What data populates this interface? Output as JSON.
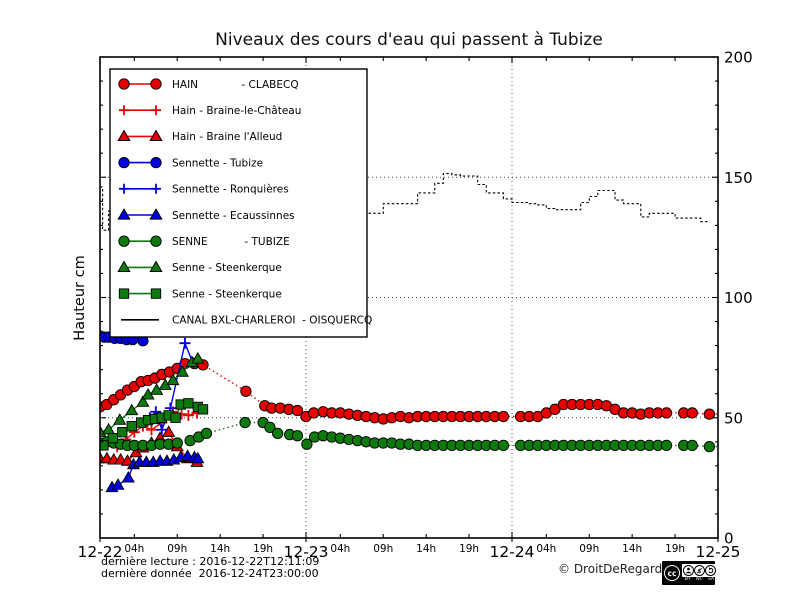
{
  "footer": {
    "line1": "dernière lecture : 2016-12-22T12:11:09",
    "line2": "dernière donnée  2016-12-24T23:00:00"
  },
  "copyright": "© DroitDeRegard.be",
  "cc_badge": {
    "cc": "cc",
    "labels": [
      "BY",
      "NC",
      "SA"
    ]
  },
  "chart_data": {
    "type": "line",
    "title": "Niveaux des cours d'eau qui passent à Tubize",
    "ylabel": "Hauteur cm",
    "ylim": [
      0,
      200
    ],
    "yticks": [
      0,
      50,
      100,
      150,
      200
    ],
    "y_minor_step": 10,
    "grid_y": [
      50,
      100,
      150
    ],
    "grid_x_hours": [
      24,
      48
    ],
    "x_range_hours": [
      0,
      72
    ],
    "grid": "dotted",
    "legend_position": "upper left",
    "day_ticks": [
      {
        "h": 0,
        "label": "12-22"
      },
      {
        "h": 24,
        "label": "12-23"
      },
      {
        "h": 48,
        "label": "12-24"
      },
      {
        "h": 72,
        "label": "12-25"
      }
    ],
    "hour_ticks": [
      {
        "h": 4,
        "label": "04h"
      },
      {
        "h": 9,
        "label": "09h"
      },
      {
        "h": 14,
        "label": "14h"
      },
      {
        "h": 19,
        "label": "19h"
      },
      {
        "h": 28,
        "label": "04h"
      },
      {
        "h": 33,
        "label": "09h"
      },
      {
        "h": 38,
        "label": "14h"
      },
      {
        "h": 43,
        "label": "19h"
      },
      {
        "h": 52,
        "label": "04h"
      },
      {
        "h": 57,
        "label": "09h"
      },
      {
        "h": 62,
        "label": "14h"
      },
      {
        "h": 67,
        "label": "19h"
      }
    ],
    "series": [
      {
        "id": "hain-clabecq",
        "legend_label": "HAIN             - CLABECQ",
        "color": "#e60000",
        "marker": "circle",
        "line": "dotted",
        "points": [
          [
            0,
            54.5
          ],
          [
            0.8,
            55.5
          ],
          [
            1.6,
            57.5
          ],
          [
            2.4,
            59.5
          ],
          [
            3.2,
            61.5
          ],
          [
            4,
            63
          ],
          [
            4.8,
            65
          ],
          [
            5.6,
            65.5
          ],
          [
            6.4,
            66.5
          ],
          [
            7.2,
            68
          ],
          [
            8.1,
            69
          ],
          [
            9,
            70.5
          ],
          [
            9.9,
            72.5
          ],
          [
            11,
            72.5
          ],
          [
            12,
            72
          ],
          [
            17,
            61
          ],
          [
            19.2,
            55
          ],
          [
            20,
            54
          ],
          [
            21,
            54
          ],
          [
            22,
            53.5
          ],
          [
            23,
            53
          ],
          [
            24,
            50.5
          ],
          [
            24.9,
            52
          ],
          [
            26,
            52.5
          ],
          [
            27,
            52
          ],
          [
            28,
            52
          ],
          [
            29,
            51.5
          ],
          [
            30,
            51
          ],
          [
            31,
            50.5
          ],
          [
            32,
            50
          ],
          [
            33,
            49.5
          ],
          [
            34,
            50
          ],
          [
            35,
            50.5
          ],
          [
            36,
            50
          ],
          [
            37,
            50.5
          ],
          [
            38,
            50.5
          ],
          [
            39,
            50.5
          ],
          [
            40,
            50.5
          ],
          [
            41,
            50.5
          ],
          [
            42,
            50.5
          ],
          [
            43,
            50.5
          ],
          [
            44,
            50.5
          ],
          [
            45,
            50.5
          ],
          [
            46,
            50.5
          ],
          [
            47,
            50.5
          ],
          [
            49,
            50.5
          ],
          [
            50,
            50.5
          ],
          [
            51,
            50.5
          ],
          [
            52,
            52
          ],
          [
            53,
            53.5
          ],
          [
            54,
            55.5
          ],
          [
            55,
            55.5
          ],
          [
            56,
            55.5
          ],
          [
            57,
            55.5
          ],
          [
            58,
            55.5
          ],
          [
            59,
            55
          ],
          [
            60,
            53.5
          ],
          [
            61,
            52
          ],
          [
            62,
            52
          ],
          [
            63,
            51.5
          ],
          [
            64,
            52
          ],
          [
            65,
            52
          ],
          [
            66,
            52
          ],
          [
            68,
            52
          ],
          [
            69,
            52
          ],
          [
            71,
            51.5
          ]
        ],
        "extend": [
          [
            72,
            51.5
          ]
        ]
      },
      {
        "id": "hain-braine-le-chateau",
        "legend_label": "Hain - Braine-le-Château",
        "color": "#e60000",
        "marker": "plus",
        "line": "solid",
        "points": [
          [
            2,
            38
          ],
          [
            3,
            41
          ],
          [
            4,
            44
          ],
          [
            5,
            46.5
          ],
          [
            6,
            45
          ],
          [
            7.2,
            48
          ],
          [
            8.5,
            52.5
          ],
          [
            9.5,
            51.5
          ],
          [
            10.3,
            51
          ],
          [
            11.3,
            52
          ]
        ]
      },
      {
        "id": "hain-braine-l-alleud",
        "legend_label": "Hain - Braine l'Alleud",
        "color": "#e60000",
        "marker": "triangle",
        "line": "solid",
        "points": [
          [
            0,
            33
          ],
          [
            0.8,
            33
          ],
          [
            1.6,
            32.5
          ],
          [
            2.4,
            32.5
          ],
          [
            3.2,
            32
          ],
          [
            4.2,
            35.5
          ],
          [
            5,
            37.5
          ],
          [
            6,
            39.5
          ],
          [
            7,
            41.5
          ],
          [
            8,
            44
          ],
          [
            9,
            38
          ],
          [
            10.2,
            33
          ],
          [
            11.3,
            31.5
          ]
        ]
      },
      {
        "id": "sennette-tubize",
        "legend_label": "Sennette - Tubize",
        "color": "#0000dd",
        "marker": "circle",
        "line": "dotted",
        "points": [
          [
            0,
            84
          ],
          [
            0.5,
            83.5
          ],
          [
            1,
            83.5
          ],
          [
            1.7,
            83
          ],
          [
            2.4,
            83
          ],
          [
            3.1,
            82.5
          ],
          [
            3.8,
            82.5
          ],
          [
            5,
            82
          ]
        ]
      },
      {
        "id": "sennette-ronquieres",
        "legend_label": "Sennette - Ronquières",
        "color": "#0000dd",
        "marker": "plus",
        "line": "solid",
        "points": [
          [
            5.8,
            50
          ],
          [
            6.5,
            52.5
          ],
          [
            7.2,
            45
          ],
          [
            8.2,
            54
          ],
          [
            9.9,
            81
          ],
          [
            10.8,
            73
          ]
        ]
      },
      {
        "id": "sennette-ecaussinnes",
        "legend_label": "Sennette - Ecaussinnes",
        "color": "#0000dd",
        "marker": "triangle",
        "line": "solid",
        "points": [
          [
            1.4,
            21
          ],
          [
            2.1,
            22
          ],
          [
            3.3,
            25
          ],
          [
            3.9,
            30.5
          ],
          [
            4.6,
            31.5
          ],
          [
            5.4,
            31.5
          ],
          [
            6.2,
            31.5
          ],
          [
            7,
            32
          ],
          [
            7.8,
            32
          ],
          [
            8.6,
            32.5
          ],
          [
            9.4,
            33.5
          ],
          [
            10.2,
            34
          ],
          [
            11,
            33.5
          ],
          [
            11.4,
            33
          ]
        ]
      },
      {
        "id": "senne-tubize",
        "legend_label": "SENNE           - TUBIZE",
        "color": "#0e7a0e",
        "marker": "circle",
        "line": "dotted",
        "points": [
          [
            0,
            39.5
          ],
          [
            0.8,
            40
          ],
          [
            1.6,
            39.5
          ],
          [
            2.4,
            39
          ],
          [
            3.2,
            38.5
          ],
          [
            4,
            38.5
          ],
          [
            5,
            38.5
          ],
          [
            6,
            38.5
          ],
          [
            7,
            39
          ],
          [
            8,
            39
          ],
          [
            9,
            39.5
          ],
          [
            10.5,
            40.5
          ],
          [
            11.5,
            42
          ],
          [
            12.4,
            43.5
          ],
          [
            16.9,
            48
          ],
          [
            19,
            48
          ],
          [
            19.8,
            46
          ],
          [
            20.7,
            43.5
          ],
          [
            22.1,
            43
          ],
          [
            23,
            42.5
          ],
          [
            24.1,
            39
          ],
          [
            25,
            42
          ],
          [
            26,
            42.5
          ],
          [
            27,
            42
          ],
          [
            28,
            41.5
          ],
          [
            29,
            41
          ],
          [
            30,
            40.5
          ],
          [
            31,
            40
          ],
          [
            32,
            39.5
          ],
          [
            33,
            39.5
          ],
          [
            34,
            39.5
          ],
          [
            35,
            39
          ],
          [
            36,
            39
          ],
          [
            37,
            38.5
          ],
          [
            38,
            38.5
          ],
          [
            39,
            38.5
          ],
          [
            40,
            38.5
          ],
          [
            41,
            38.5
          ],
          [
            42,
            38.5
          ],
          [
            43,
            38.5
          ],
          [
            44,
            38.5
          ],
          [
            45,
            38.5
          ],
          [
            46,
            38.5
          ],
          [
            47,
            38.5
          ],
          [
            49,
            38.5
          ],
          [
            50,
            38.5
          ],
          [
            51,
            38.5
          ],
          [
            52,
            38.5
          ],
          [
            53,
            38.5
          ],
          [
            54,
            38.5
          ],
          [
            55,
            38.5
          ],
          [
            56,
            38.5
          ],
          [
            57,
            38.5
          ],
          [
            58,
            38.5
          ],
          [
            59,
            38.5
          ],
          [
            60,
            38.5
          ],
          [
            61,
            38.5
          ],
          [
            62,
            38.5
          ],
          [
            63,
            38.5
          ],
          [
            64,
            38.5
          ],
          [
            65,
            38.5
          ],
          [
            66,
            38.5
          ],
          [
            68,
            38.5
          ],
          [
            69,
            38.5
          ],
          [
            71,
            38
          ]
        ],
        "extend": [
          [
            72,
            38
          ]
        ]
      },
      {
        "id": "senne-steenkerque-1",
        "legend_label": "Senne - Steenkerque",
        "color": "#0e7a0e",
        "marker": "triangle",
        "line": "solid",
        "points": [
          [
            0,
            44
          ],
          [
            1,
            45
          ],
          [
            2.3,
            49
          ],
          [
            3.7,
            53
          ],
          [
            5,
            56.5
          ],
          [
            5.6,
            59.5
          ],
          [
            6.6,
            61.5
          ],
          [
            7.6,
            63.5
          ],
          [
            8.5,
            65.5
          ],
          [
            9.6,
            69
          ],
          [
            10.7,
            73
          ],
          [
            11.4,
            74.5
          ]
        ]
      },
      {
        "id": "senne-steenkerque-2",
        "legend_label": "Senne - Steenkerque",
        "color": "#0e7a0e",
        "marker": "square",
        "line": "solid",
        "points": [
          [
            0.4,
            38.5
          ],
          [
            1.5,
            41.5
          ],
          [
            2.6,
            44
          ],
          [
            3.7,
            46.5
          ],
          [
            4.8,
            48
          ],
          [
            5.6,
            49
          ],
          [
            6.4,
            49.5
          ],
          [
            7.2,
            50
          ],
          [
            8,
            51
          ],
          [
            8.8,
            50
          ],
          [
            9.4,
            55.5
          ],
          [
            10.3,
            56
          ],
          [
            11.4,
            54.5
          ],
          [
            12,
            53.5
          ]
        ]
      },
      {
        "id": "canal-bxl-charleroi-oisquercq",
        "legend_label": "CANAL BXL-CHARLEROI  - OISQUERCQ",
        "color": "#000000",
        "marker": "none",
        "line": "step-dash",
        "points": [
          [
            0,
            146
          ],
          [
            0.3,
            128
          ],
          [
            1,
            136
          ],
          [
            2,
            137
          ],
          [
            4,
            138
          ],
          [
            6,
            138
          ],
          [
            8,
            137
          ],
          [
            10,
            137
          ],
          [
            12,
            136
          ],
          [
            14,
            136
          ],
          [
            16,
            135
          ],
          [
            18,
            135
          ],
          [
            20,
            135
          ],
          [
            22,
            135
          ],
          [
            24,
            135
          ],
          [
            26,
            135
          ],
          [
            28,
            135
          ],
          [
            30,
            135
          ],
          [
            32,
            135
          ],
          [
            33,
            139
          ],
          [
            34,
            139
          ],
          [
            35,
            139
          ],
          [
            36,
            139
          ],
          [
            37,
            143.5
          ],
          [
            38,
            143.5
          ],
          [
            39,
            147.5
          ],
          [
            40,
            151.5
          ],
          [
            41,
            151
          ],
          [
            42,
            150.5
          ],
          [
            43,
            150.5
          ],
          [
            44,
            147
          ],
          [
            45,
            143.5
          ],
          [
            46,
            143.5
          ],
          [
            47,
            141
          ],
          [
            48,
            139.5
          ],
          [
            49,
            139.5
          ],
          [
            50,
            139
          ],
          [
            51,
            138.5
          ],
          [
            52,
            137
          ],
          [
            53,
            136.5
          ],
          [
            54,
            136.5
          ],
          [
            55,
            136.5
          ],
          [
            56,
            139.5
          ],
          [
            57,
            142
          ],
          [
            58,
            144.5
          ],
          [
            59,
            144.5
          ],
          [
            60,
            140.5
          ],
          [
            61,
            139
          ],
          [
            62,
            139
          ],
          [
            63,
            133.5
          ],
          [
            64,
            135
          ],
          [
            65,
            135
          ],
          [
            66,
            135
          ],
          [
            67,
            133
          ],
          [
            68,
            133
          ],
          [
            69,
            133
          ],
          [
            70,
            131.5
          ],
          [
            71,
            131.5
          ]
        ]
      }
    ]
  }
}
